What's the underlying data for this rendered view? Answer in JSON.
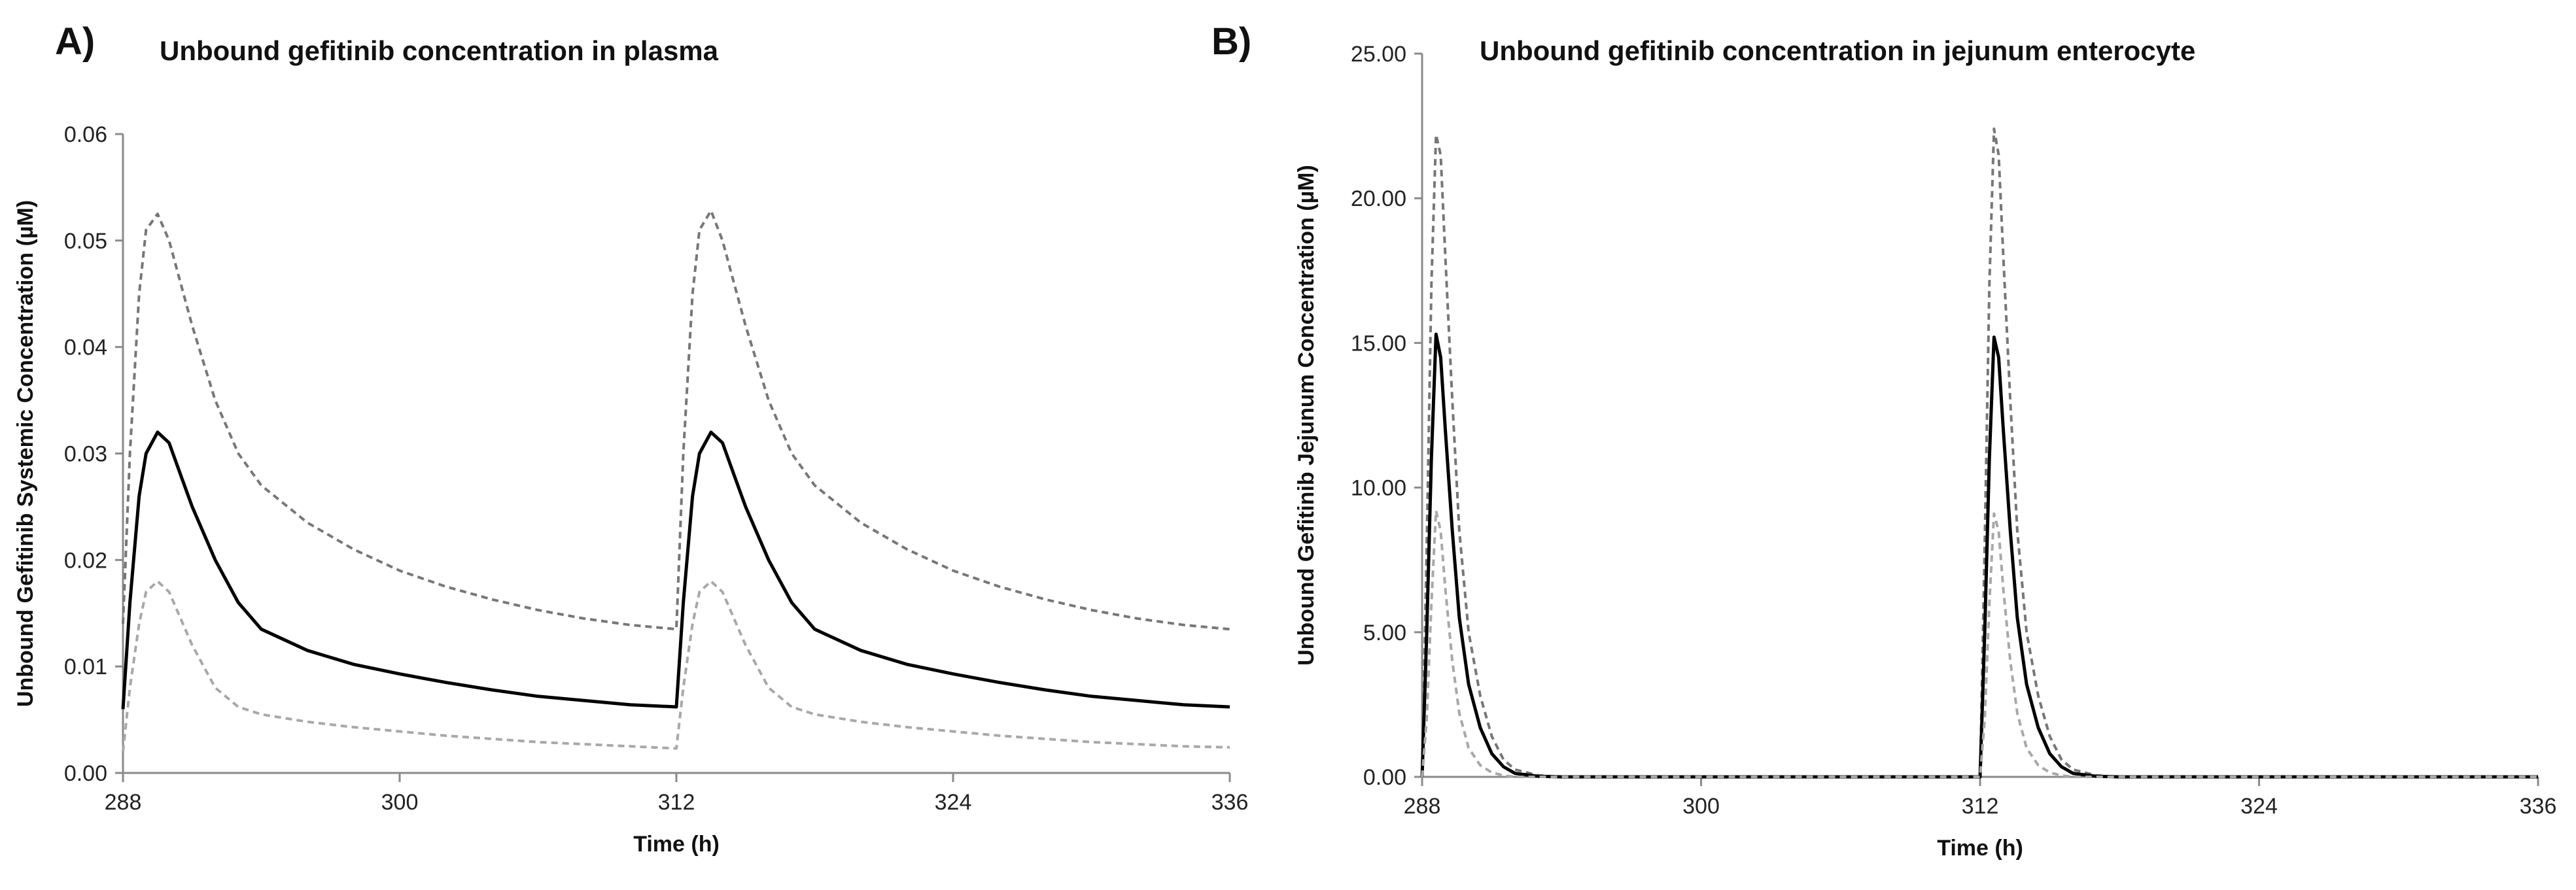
{
  "chart_data": [
    {
      "type": "line",
      "panel_label": "A)",
      "title": "Unbound gefitinib concentration in plasma",
      "xlabel": "Time (h)",
      "ylabel": "Unbound Gefitinib Systemic Concentration (µM)",
      "xlim": [
        288,
        336
      ],
      "ylim": [
        0,
        0.06
      ],
      "xticks": [
        288,
        300,
        312,
        324,
        336
      ],
      "xtick_labels": [
        "288",
        "300",
        "312",
        "324",
        "336"
      ],
      "yticks": [
        0,
        0.01,
        0.02,
        0.03,
        0.04,
        0.05,
        0.06
      ],
      "ytick_labels": [
        "0.00",
        "0.01",
        "0.02",
        "0.03",
        "0.04",
        "0.05",
        "0.06"
      ],
      "grid": false,
      "series": [
        {
          "style": "dashed",
          "color": "#777777",
          "x": [
            288,
            288.3,
            288.7,
            289,
            289.5,
            290,
            290.5,
            291,
            292,
            293,
            294,
            296,
            298,
            300,
            302,
            304,
            306,
            308,
            310,
            312,
            312.3,
            312.7,
            313,
            313.5,
            314,
            314.5,
            315,
            316,
            317,
            318,
            320,
            322,
            324,
            326,
            328,
            330,
            332,
            334,
            336
          ],
          "y": [
            0.014,
            0.03,
            0.045,
            0.051,
            0.0525,
            0.05,
            0.046,
            0.042,
            0.035,
            0.03,
            0.027,
            0.0235,
            0.021,
            0.019,
            0.0175,
            0.0163,
            0.0153,
            0.0145,
            0.0139,
            0.0135,
            0.03,
            0.045,
            0.051,
            0.0528,
            0.05,
            0.046,
            0.042,
            0.035,
            0.03,
            0.027,
            0.0235,
            0.021,
            0.019,
            0.0175,
            0.0163,
            0.0153,
            0.0145,
            0.0139,
            0.0135
          ]
        },
        {
          "style": "solid",
          "color": "#000000",
          "x": [
            288,
            288.3,
            288.7,
            289,
            289.5,
            290,
            290.5,
            291,
            292,
            293,
            294,
            296,
            298,
            300,
            302,
            304,
            306,
            308,
            310,
            312,
            312.3,
            312.7,
            313,
            313.5,
            314,
            314.5,
            315,
            316,
            317,
            318,
            320,
            322,
            324,
            326,
            328,
            330,
            332,
            334,
            336
          ],
          "y": [
            0.006,
            0.016,
            0.026,
            0.03,
            0.032,
            0.031,
            0.028,
            0.025,
            0.02,
            0.016,
            0.0135,
            0.0115,
            0.0102,
            0.0093,
            0.0085,
            0.0078,
            0.0072,
            0.0068,
            0.0064,
            0.0062,
            0.016,
            0.026,
            0.03,
            0.032,
            0.031,
            0.028,
            0.025,
            0.02,
            0.016,
            0.0135,
            0.0115,
            0.0102,
            0.0093,
            0.0085,
            0.0078,
            0.0072,
            0.0068,
            0.0064,
            0.0062
          ]
        },
        {
          "style": "dashed",
          "color": "#a8a8a8",
          "x": [
            288,
            288.3,
            288.7,
            289,
            289.5,
            290,
            290.5,
            291,
            292,
            293,
            294,
            296,
            298,
            300,
            302,
            304,
            306,
            308,
            310,
            312,
            312.3,
            312.7,
            313,
            313.5,
            314,
            314.5,
            315,
            316,
            317,
            318,
            320,
            322,
            324,
            326,
            328,
            330,
            332,
            334,
            336
          ],
          "y": [
            0.002,
            0.008,
            0.014,
            0.017,
            0.018,
            0.017,
            0.0145,
            0.012,
            0.008,
            0.0062,
            0.0055,
            0.0048,
            0.0043,
            0.0039,
            0.0035,
            0.0032,
            0.0029,
            0.0027,
            0.0025,
            0.0023,
            0.008,
            0.014,
            0.017,
            0.018,
            0.017,
            0.0145,
            0.012,
            0.008,
            0.0062,
            0.0055,
            0.0048,
            0.0043,
            0.0039,
            0.0035,
            0.0032,
            0.0029,
            0.0027,
            0.0025,
            0.0024
          ]
        }
      ]
    },
    {
      "type": "line",
      "panel_label": "B)",
      "title": "Unbound gefitinib concentration in jejunum enterocyte",
      "xlabel": "Time (h)",
      "ylabel": "Unbound Gefitinib Jejunum Concentration (µM)",
      "xlim": [
        288,
        336
      ],
      "ylim": [
        0,
        25
      ],
      "xticks": [
        288,
        300,
        312,
        324,
        336
      ],
      "xtick_labels": [
        "288",
        "300",
        "312",
        "324",
        "336"
      ],
      "yticks": [
        0,
        5,
        10,
        15,
        20,
        25
      ],
      "ytick_labels": [
        "0.00",
        "5.00",
        "10.00",
        "15.00",
        "20.00",
        "25.00"
      ],
      "grid": false,
      "series": [
        {
          "style": "dashed",
          "color": "#777777",
          "x": [
            288,
            288.2,
            288.4,
            288.6,
            288.8,
            289,
            289.3,
            289.6,
            290,
            290.5,
            291,
            291.5,
            292,
            293,
            294,
            300,
            311.9,
            312,
            312.2,
            312.4,
            312.6,
            312.8,
            313,
            313.3,
            313.6,
            314,
            314.5,
            315,
            315.5,
            316,
            317,
            318,
            324,
            336
          ],
          "y": [
            0,
            8,
            17,
            22.2,
            21.5,
            18,
            13,
            8.5,
            5,
            2.8,
            1.4,
            0.6,
            0.25,
            0.05,
            0,
            0,
            0,
            0,
            8,
            17,
            22.4,
            21.5,
            18,
            13,
            8.5,
            5,
            2.8,
            1.4,
            0.6,
            0.25,
            0.05,
            0,
            0,
            0
          ]
        },
        {
          "style": "solid",
          "color": "#000000",
          "x": [
            288,
            288.2,
            288.4,
            288.6,
            288.8,
            289,
            289.3,
            289.6,
            290,
            290.5,
            291,
            291.5,
            292,
            293,
            294,
            300,
            311.9,
            312,
            312.2,
            312.4,
            312.6,
            312.8,
            313,
            313.3,
            313.6,
            314,
            314.5,
            315,
            315.5,
            316,
            317,
            318,
            324,
            336
          ],
          "y": [
            0,
            5,
            11,
            15.3,
            14.5,
            12,
            8.5,
            5.5,
            3.2,
            1.7,
            0.8,
            0.35,
            0.12,
            0.02,
            0,
            0,
            0,
            0,
            5,
            11,
            15.2,
            14.5,
            12,
            8.5,
            5.5,
            3.2,
            1.7,
            0.8,
            0.35,
            0.12,
            0.02,
            0,
            0,
            0
          ]
        },
        {
          "style": "dashed",
          "color": "#a8a8a8",
          "x": [
            288,
            288.2,
            288.4,
            288.6,
            288.8,
            289,
            289.3,
            289.6,
            290,
            290.5,
            291,
            291.5,
            292,
            300,
            311.9,
            312,
            312.2,
            312.4,
            312.6,
            312.8,
            313,
            313.3,
            313.6,
            314,
            314.5,
            315,
            315.5,
            316,
            324,
            336
          ],
          "y": [
            0,
            2,
            6,
            9.2,
            8.5,
            6.5,
            4,
            2.2,
            1,
            0.4,
            0.15,
            0.05,
            0,
            0,
            0,
            0,
            2,
            6,
            9.1,
            8.5,
            6.5,
            4,
            2.2,
            1,
            0.4,
            0.15,
            0.05,
            0,
            0,
            0
          ]
        }
      ]
    }
  ]
}
